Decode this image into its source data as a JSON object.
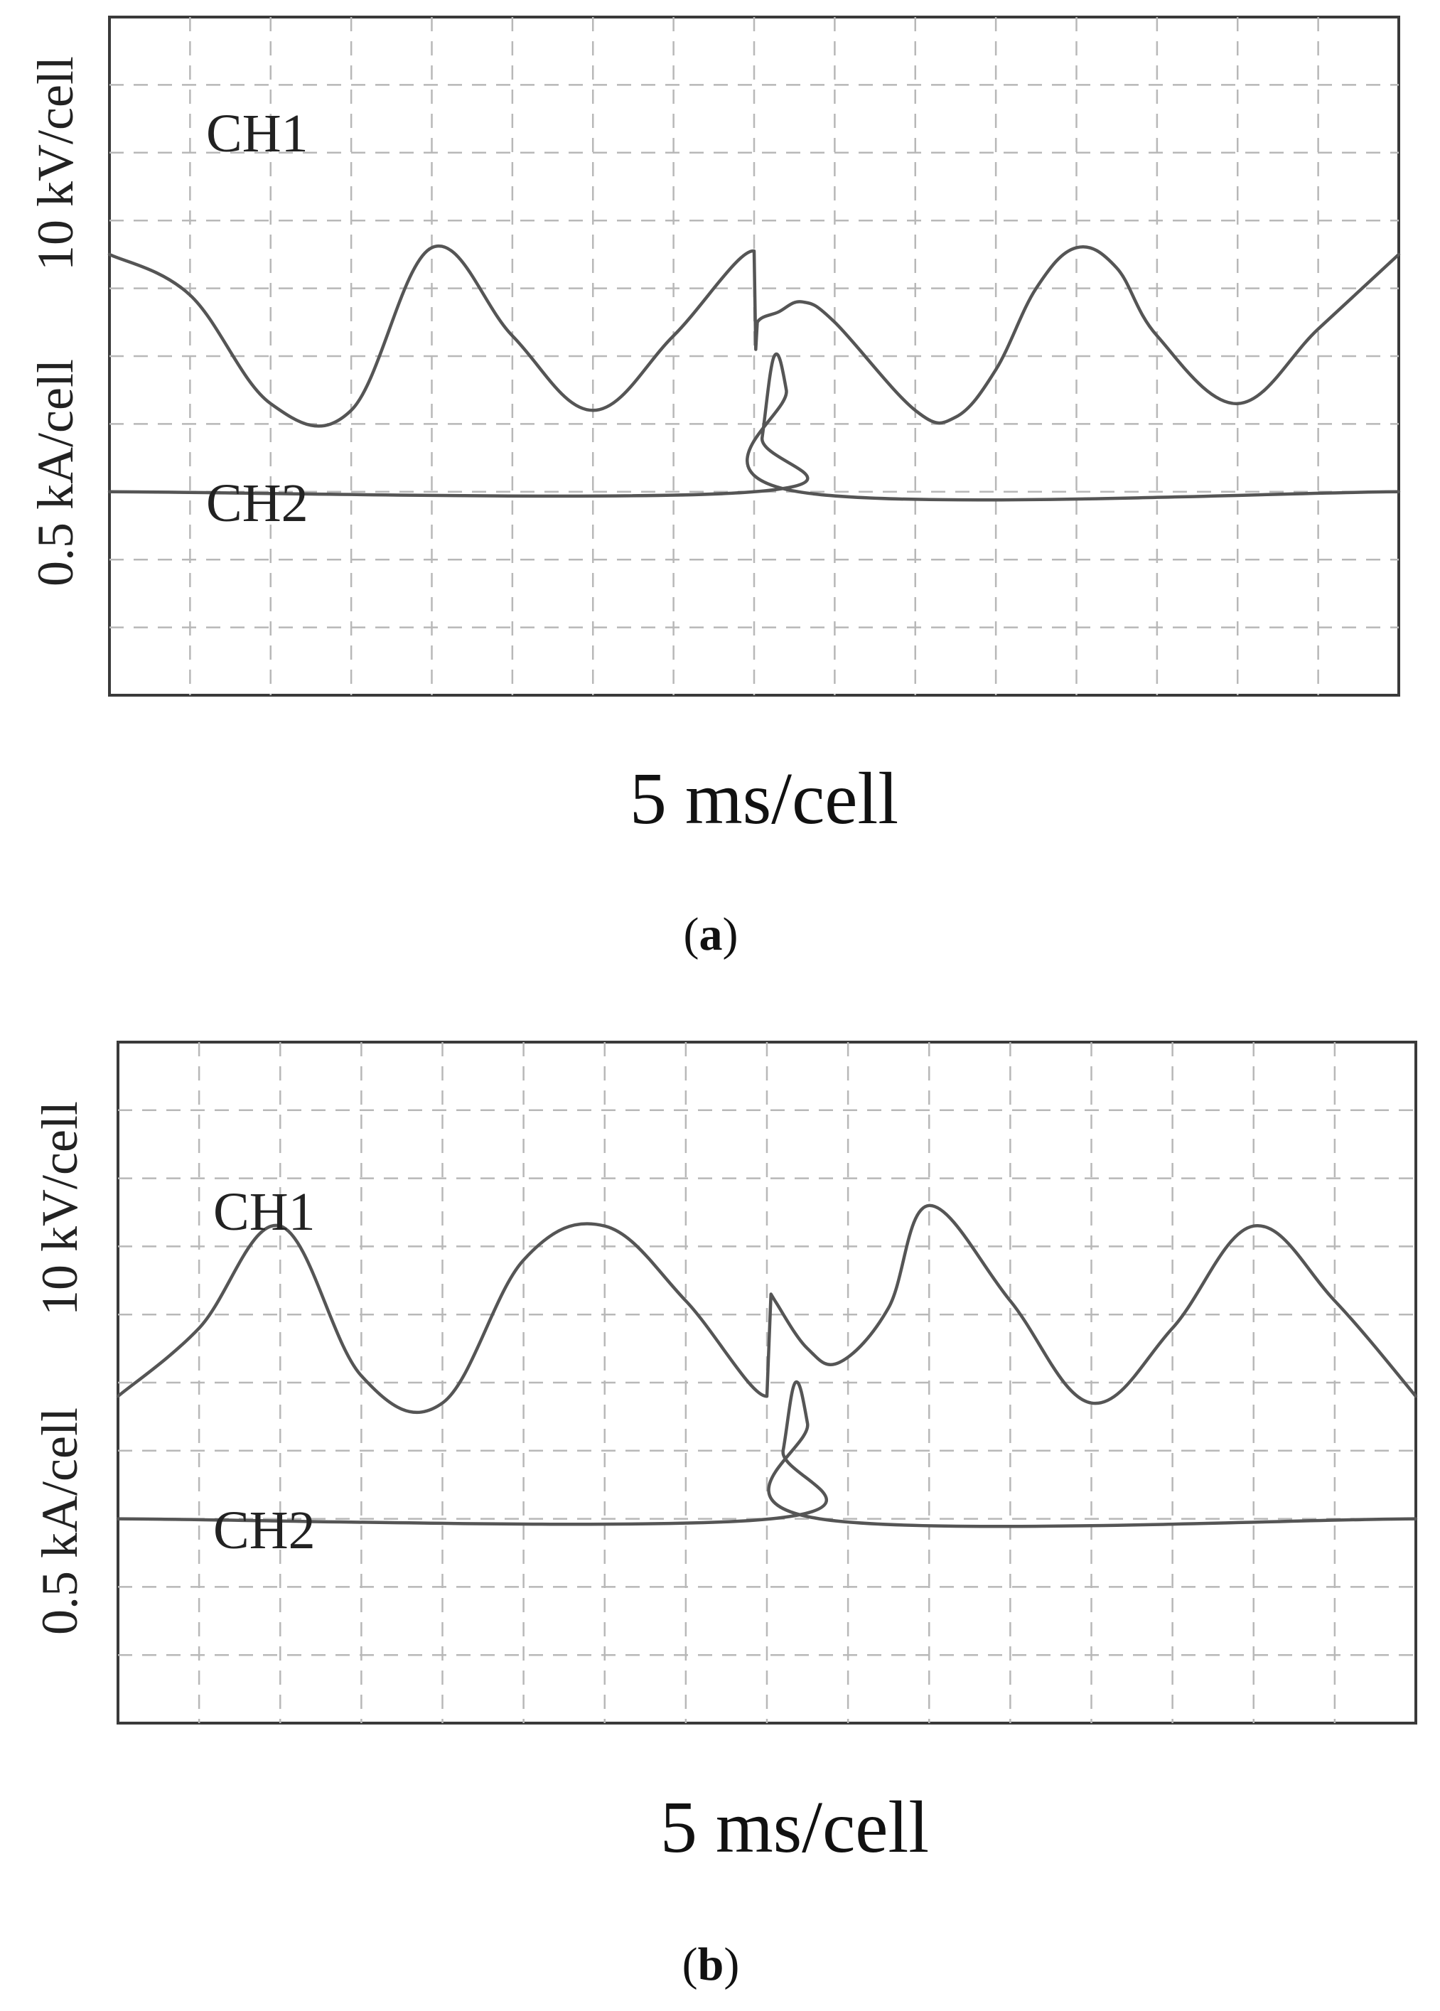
{
  "panels": [
    {
      "id": "a",
      "caption_letter": "a",
      "ch1_label": "CH1",
      "ch2_label": "CH2",
      "y_label_ch1": "10 kV/cell",
      "y_label_ch2": "0.5 kA/cell",
      "x_label": "5 ms/cell",
      "chart_data": {
        "type": "line",
        "grid": true,
        "x_divisions": 16,
        "y_divisions": 10,
        "series": [
          {
            "name": "CH1",
            "x": [
              0,
              1,
              2,
              3,
              4,
              5,
              6,
              7,
              8,
              8.02,
              8.04,
              8.3,
              8.6,
              9,
              10,
              10.5,
              11,
              11.5,
              12,
              12.5,
              13,
              14,
              15,
              16
            ],
            "y": [
              1.5,
              0.9,
              -0.7,
              -0.8,
              1.6,
              0.3,
              -0.8,
              0.3,
              1.55,
              0.1,
              0.5,
              0.65,
              0.8,
              0.5,
              -0.8,
              -0.9,
              -0.2,
              1.0,
              1.6,
              1.3,
              0.3,
              -0.7,
              0.4,
              1.5
            ]
          },
          {
            "name": "CH2",
            "x": [
              0,
              8,
              8.1,
              8.25,
              8.4,
              8.55,
              16
            ],
            "y": [
              -2.0,
              -2.0,
              -1.2,
              0.0,
              -0.5,
              -2.0,
              -2.0
            ]
          }
        ]
      }
    },
    {
      "id": "b",
      "caption_letter": "b",
      "ch1_label": "CH1",
      "ch2_label": "CH2",
      "y_label_ch1": "10 kV/cell",
      "y_label_ch2": "0.5 kA/cell",
      "x_label": "5 ms/cell",
      "chart_data": {
        "type": "line",
        "grid": true,
        "x_divisions": 16,
        "y_divisions": 10,
        "series": [
          {
            "name": "CH1",
            "x": [
              0,
              1,
              2,
              3,
              4,
              5,
              6,
              7,
              8,
              8.05,
              8.1,
              8.5,
              8.9,
              9.5,
              10,
              11,
              12,
              13,
              14,
              15,
              16
            ],
            "y": [
              -0.2,
              0.8,
              2.3,
              0.1,
              -0.3,
              1.8,
              2.3,
              1.2,
              -0.2,
              1.3,
              1.2,
              0.5,
              0.3,
              1.1,
              2.6,
              1.2,
              -0.3,
              0.8,
              2.3,
              1.2,
              -0.2
            ]
          },
          {
            "name": "CH2",
            "x": [
              0,
              8.05,
              8.2,
              8.35,
              8.5,
              8.65,
              16
            ],
            "y": [
              -2.0,
              -2.0,
              -1.0,
              0.0,
              -0.6,
              -2.0,
              -2.0
            ]
          }
        ]
      }
    }
  ]
}
